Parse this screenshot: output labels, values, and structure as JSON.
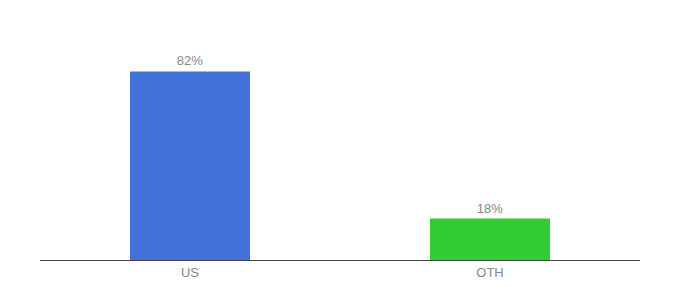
{
  "chart_data": {
    "type": "bar",
    "categories": [
      "US",
      "OTH"
    ],
    "values": [
      82,
      18
    ],
    "value_labels": [
      "82%",
      "18%"
    ],
    "colors": [
      "#4472db",
      "#33cc33"
    ],
    "ylim": [
      0,
      100
    ],
    "grid": false,
    "data_labels": true,
    "tick_labels": "x"
  }
}
